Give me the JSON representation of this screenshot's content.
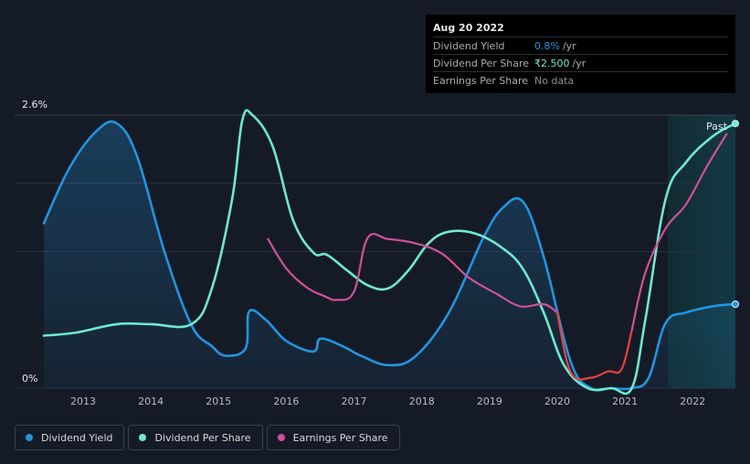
{
  "tooltip": {
    "date": "Aug 20 2022",
    "rows": [
      {
        "label": "Dividend Yield",
        "value": "0.8%",
        "unit": "/yr",
        "color": "#2394df"
      },
      {
        "label": "Dividend Per Share",
        "value": "₹2.500",
        "unit": "/yr",
        "color": "#6ee9d0"
      },
      {
        "label": "Earnings Per Share",
        "value": "No data",
        "unit": "",
        "color": "#8a8f98"
      }
    ]
  },
  "legend": [
    {
      "label": "Dividend Yield",
      "color": "#2394df"
    },
    {
      "label": "Dividend Per Share",
      "color": "#6ee9d0"
    },
    {
      "label": "Earnings Per Share",
      "color": "#d0509a"
    }
  ],
  "past_label": "Past",
  "chart_data": {
    "type": "line",
    "xlabel": "",
    "ylabel": "",
    "xlim": [
      2012.42,
      2022.63
    ],
    "ylim": [
      0,
      2.6
    ],
    "y_tick_labels": [
      "2.6%",
      "0%"
    ],
    "x_tick_labels": [
      "2013",
      "2014",
      "2015",
      "2016",
      "2017",
      "2018",
      "2019",
      "2020",
      "2021",
      "2022"
    ],
    "x_ticks": [
      2013,
      2014,
      2015,
      2016,
      2017,
      2018,
      2019,
      2020,
      2021,
      2022
    ],
    "past_region_start": 2021.63,
    "series": [
      {
        "name": "Dividend Yield",
        "unit": "%",
        "color": "#2394df",
        "fill": true,
        "x": [
          2012.42,
          2012.8,
          2013.2,
          2013.5,
          2013.8,
          2014.2,
          2014.6,
          2014.9,
          2015.1,
          2015.4,
          2015.45,
          2015.7,
          2016.0,
          2016.4,
          2016.5,
          2016.8,
          2017.1,
          2017.5,
          2017.9,
          2018.4,
          2018.9,
          2019.2,
          2019.5,
          2019.8,
          2020.2,
          2020.5,
          2020.8,
          2021.1,
          2021.35,
          2021.6,
          2021.9,
          2022.3,
          2022.63
        ],
        "y": [
          1.57,
          2.1,
          2.45,
          2.52,
          2.2,
          1.3,
          0.6,
          0.4,
          0.31,
          0.38,
          0.73,
          0.65,
          0.45,
          0.35,
          0.47,
          0.41,
          0.31,
          0.22,
          0.3,
          0.72,
          1.42,
          1.72,
          1.77,
          1.25,
          0.25,
          0.0,
          0.0,
          0.0,
          0.1,
          0.62,
          0.72,
          0.78,
          0.8
        ]
      },
      {
        "name": "Dividend Per Share",
        "unit": "scaled",
        "color": "#6ee9d0",
        "fill": false,
        "x": [
          2012.42,
          2012.9,
          2013.5,
          2014.0,
          2014.6,
          2014.9,
          2015.2,
          2015.35,
          2015.5,
          2015.8,
          2016.1,
          2016.4,
          2016.6,
          2016.9,
          2017.2,
          2017.5,
          2017.8,
          2018.1,
          2018.4,
          2018.8,
          2019.2,
          2019.5,
          2019.8,
          2020.1,
          2020.45,
          2020.8,
          2021.1,
          2021.3,
          2021.6,
          2021.9,
          2022.3,
          2022.63
        ],
        "y": [
          0.5,
          0.53,
          0.61,
          0.61,
          0.61,
          0.95,
          1.8,
          2.55,
          2.6,
          2.3,
          1.6,
          1.29,
          1.27,
          1.12,
          0.98,
          0.95,
          1.12,
          1.38,
          1.49,
          1.47,
          1.33,
          1.13,
          0.72,
          0.22,
          0.0,
          0.0,
          0.0,
          0.65,
          1.8,
          2.15,
          2.4,
          2.52
        ]
      },
      {
        "name": "Earnings Per Share",
        "unit": "scaled",
        "color": "#d0509a",
        "fill": false,
        "x": [
          2015.73,
          2016.0,
          2016.3,
          2016.55,
          2016.75,
          2017.0,
          2017.2,
          2017.5,
          2017.9,
          2018.3,
          2018.7,
          2019.1,
          2019.45,
          2019.8,
          2020.0,
          2020.2,
          2020.5,
          2020.75,
          2020.95,
          2021.1,
          2021.3,
          2021.6,
          2021.9,
          2022.2,
          2022.5
        ],
        "y": [
          1.42,
          1.14,
          0.96,
          0.88,
          0.84,
          0.92,
          1.43,
          1.42,
          1.38,
          1.28,
          1.05,
          0.9,
          0.78,
          0.8,
          0.72,
          0.15,
          0.1,
          0.16,
          0.18,
          0.55,
          1.1,
          1.52,
          1.75,
          2.1,
          2.42
        ]
      }
    ]
  }
}
